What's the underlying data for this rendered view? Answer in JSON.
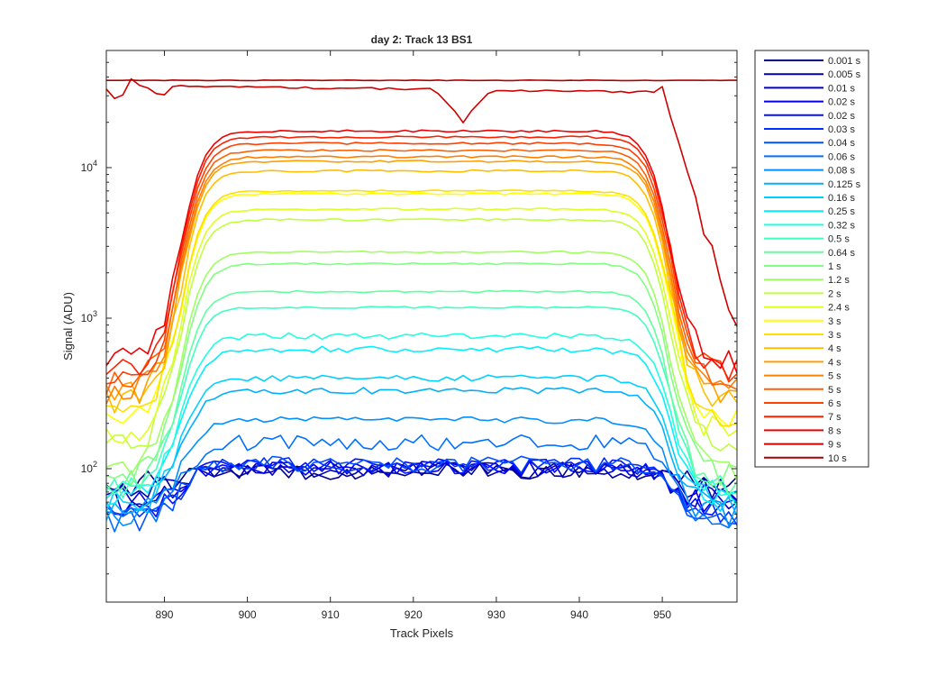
{
  "chart_data": {
    "type": "line",
    "title": "day 2: Track 13  BS1",
    "xlabel": "Track Pixels",
    "ylabel": "Signal (ADU)",
    "xlim": [
      883,
      959
    ],
    "ylim": [
      13,
      60000
    ],
    "y_scale": "log",
    "grid": false,
    "legend_position": "outside-right",
    "x_ticks": [
      890,
      900,
      910,
      920,
      930,
      940,
      950
    ],
    "y_ticks": [
      {
        "value": 100,
        "base": "10",
        "exp": "2"
      },
      {
        "value": 1000,
        "base": "10",
        "exp": "3"
      },
      {
        "value": 10000,
        "base": "10",
        "exp": "4"
      }
    ],
    "series": [
      {
        "name": "0.001 s",
        "color": "#00008F",
        "plateau": 96,
        "edge": 80
      },
      {
        "name": "0.005 s",
        "color": "#0000AF",
        "plateau": 98,
        "edge": 75
      },
      {
        "name": "0.01 s",
        "color": "#0000CF",
        "plateau": 100,
        "edge": 65
      },
      {
        "name": "0.02 s",
        "color": "#0000EF",
        "plateau": 102,
        "edge": 60
      },
      {
        "name": "0.02 s",
        "color": "#0010FF",
        "plateau": 104,
        "edge": 55
      },
      {
        "name": "0.03 s",
        "color": "#0030FF",
        "plateau": 106,
        "edge": 50
      },
      {
        "name": "0.04 s",
        "color": "#0050FF",
        "plateau": 108,
        "edge": 45
      },
      {
        "name": "0.06 s",
        "color": "#0070FF",
        "plateau": 150,
        "edge": 45
      },
      {
        "name": "0.08 s",
        "color": "#0090FF",
        "plateau": 210,
        "edge": 50
      },
      {
        "name": "0.125 s",
        "color": "#00B0FF",
        "plateau": 330,
        "edge": 55
      },
      {
        "name": "0.16 s",
        "color": "#00D0FF",
        "plateau": 400,
        "edge": 60
      },
      {
        "name": "0.25 s",
        "color": "#00F0FF",
        "plateau": 620,
        "edge": 65
      },
      {
        "name": "0.32 s",
        "color": "#20FFDF",
        "plateau": 760,
        "edge": 70
      },
      {
        "name": "0.5 s",
        "color": "#40FFBF",
        "plateau": 1180,
        "edge": 75
      },
      {
        "name": "0.64 s",
        "color": "#60FF9F",
        "plateau": 1500,
        "edge": 80
      },
      {
        "name": "1 s",
        "color": "#80FF80",
        "plateau": 2300,
        "edge": 90
      },
      {
        "name": "1.2 s",
        "color": "#9FFF60",
        "plateau": 2750,
        "edge": 100
      },
      {
        "name": "2 s",
        "color": "#BFFF40",
        "plateau": 4500,
        "edge": 140
      },
      {
        "name": "2.4 s",
        "color": "#DFFF20",
        "plateau": 5300,
        "edge": 170
      },
      {
        "name": "3 s",
        "color": "#FFFF00",
        "plateau": 6700,
        "edge": 210
      },
      {
        "name": "3 s",
        "color": "#FFDF00",
        "plateau": 7000,
        "edge": 230
      },
      {
        "name": "4 s",
        "color": "#FFBF00",
        "plateau": 9500,
        "edge": 280
      },
      {
        "name": "4 s",
        "color": "#FF9F00",
        "plateau": 11000,
        "edge": 300
      },
      {
        "name": "5 s",
        "color": "#FF8000",
        "plateau": 11800,
        "edge": 330
      },
      {
        "name": "5 s",
        "color": "#FF6000",
        "plateau": 13000,
        "edge": 370
      },
      {
        "name": "6 s",
        "color": "#FF4000",
        "plateau": 14500,
        "edge": 420
      },
      {
        "name": "7 s",
        "color": "#FF2000",
        "plateau": 16000,
        "edge": 470
      },
      {
        "name": "8 s",
        "color": "#EF0000",
        "plateau": 17500,
        "edge": 520
      },
      {
        "name": "9 s",
        "color": "#CF0000",
        "plateau": 35000,
        "edge": 950,
        "dip": 20000,
        "saturated": true
      },
      {
        "name": "10 s",
        "color": "#AF0000",
        "plateau": 38000,
        "edge": 38000,
        "flat": true
      }
    ]
  }
}
